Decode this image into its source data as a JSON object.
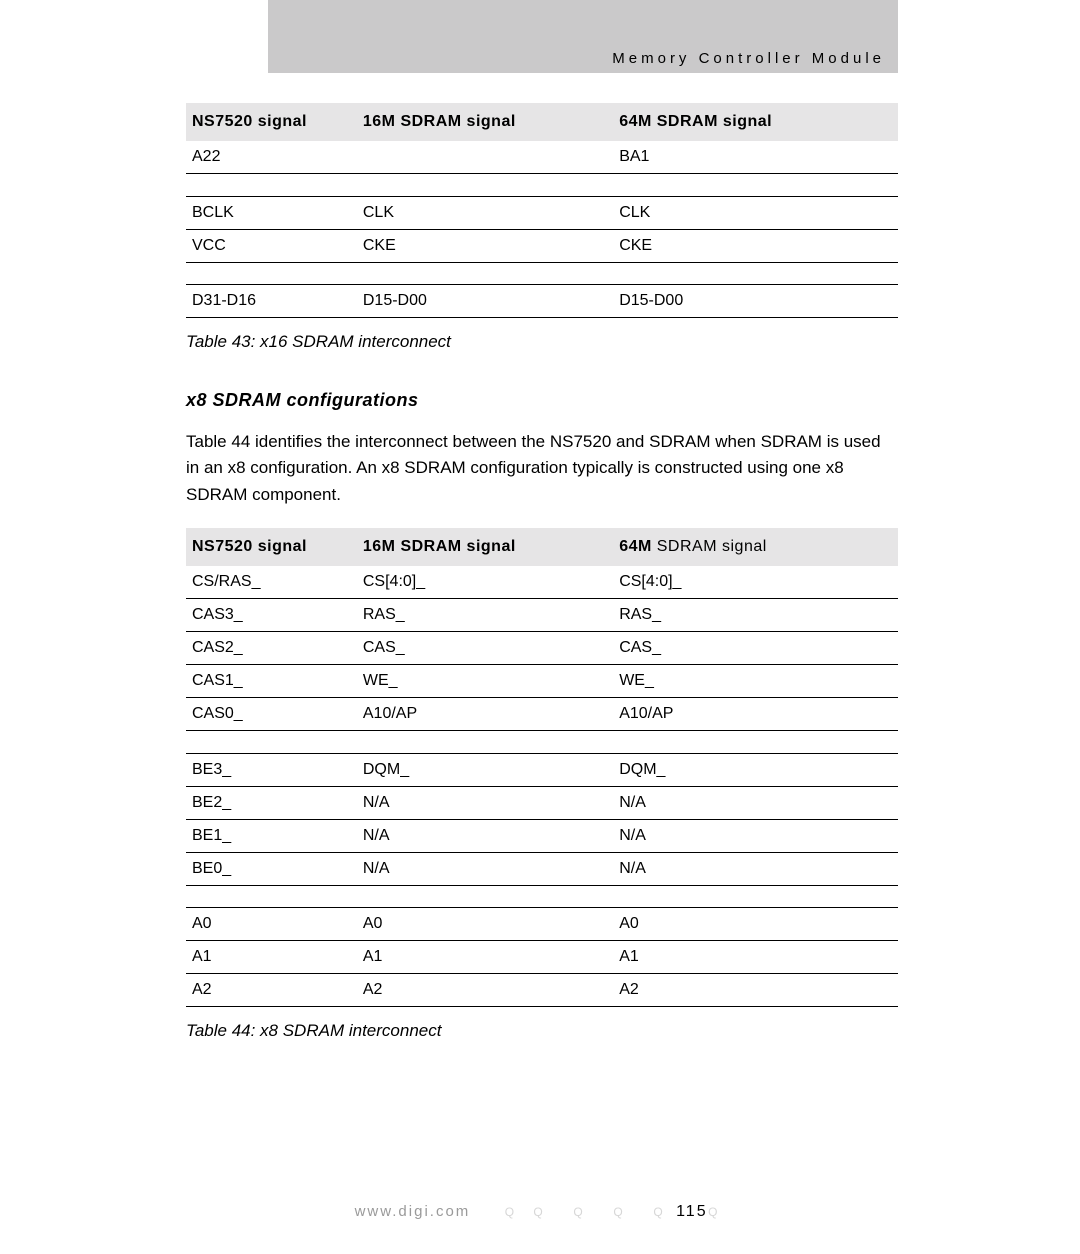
{
  "header": {
    "module_title": "Memory Controller Module"
  },
  "table43": {
    "caption": "Table 43: x16 SDRAM interconnect",
    "columns": [
      "NS7520 signal",
      "16M SDRAM signal",
      "64M SDRAM signal"
    ],
    "rows": [
      [
        "A22",
        "",
        "BA1"
      ],
      [
        "BCLK",
        "CLK",
        "CLK"
      ],
      [
        "VCC",
        "CKE",
        "CKE"
      ],
      [
        "D31-D16",
        "D15-D00",
        "D15-D00"
      ]
    ]
  },
  "section": {
    "heading": "x8 SDRAM configurations",
    "paragraph": "Table 44 identifies the interconnect between the NS7520 and SDRAM when SDRAM is used in an x8 configuration. An x8 SDRAM configuration typically is constructed using one x8 SDRAM component."
  },
  "table44": {
    "caption": "Table 44: x8 SDRAM interconnect",
    "columns": [
      "NS7520 signal",
      "16M SDRAM signal"
    ],
    "col3_prefix": "64M",
    "col3_suffix": " SDRAM signal",
    "groups": [
      [
        [
          "CS/RAS_",
          "CS[4:0]_",
          "CS[4:0]_"
        ],
        [
          "CAS3_",
          "RAS_",
          "RAS_"
        ],
        [
          "CAS2_",
          "CAS_",
          "CAS_"
        ],
        [
          "CAS1_",
          "WE_",
          "WE_"
        ],
        [
          "CAS0_",
          "A10/AP",
          "A10/AP"
        ]
      ],
      [
        [
          "BE3_",
          "DQM_",
          "DQM_"
        ],
        [
          "BE2_",
          "N/A",
          "N/A"
        ],
        [
          "BE1_",
          "N/A",
          "N/A"
        ],
        [
          "BE0_",
          "N/A",
          "N/A"
        ]
      ],
      [
        [
          "A0",
          "A0",
          "A0"
        ],
        [
          "A1",
          "A1",
          "A1"
        ],
        [
          "A2",
          "A2",
          "A2"
        ]
      ]
    ]
  },
  "footer": {
    "url": "www.digi.com",
    "page": "115"
  },
  "style": {
    "header_bg": "#cac9ca",
    "thead_bg": "#e6e5e6",
    "text_color": "#000000",
    "footer_gray": "#9a9a9a"
  }
}
